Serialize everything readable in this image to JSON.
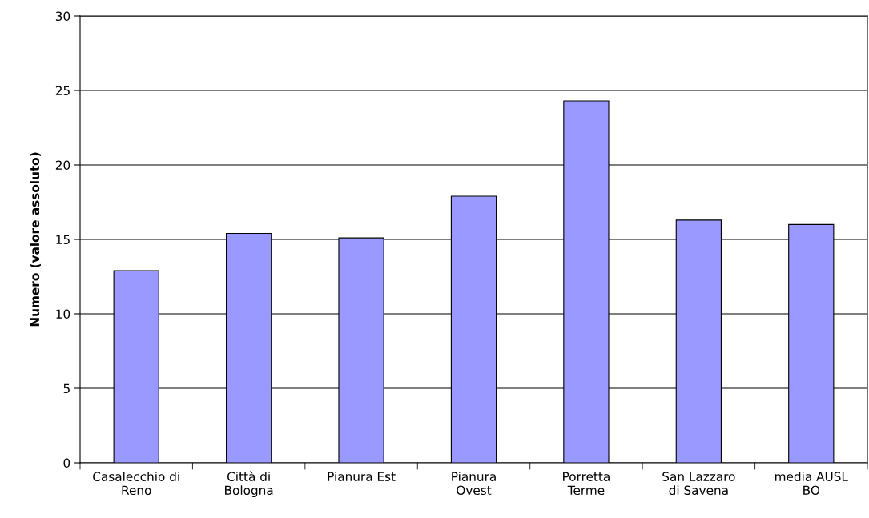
{
  "chart_data": {
    "type": "bar",
    "ylabel": "Numero (valore assoluto)",
    "categories": [
      "Casalecchio di\nReno",
      "Città di\nBologna",
      "Pianura Est",
      "Pianura\nOvest",
      "Porretta\nTerme",
      "San Lazzaro\ndi Savena",
      "media AUSL\nBO"
    ],
    "values": [
      12.9,
      15.4,
      15.1,
      17.9,
      24.3,
      16.3,
      16.0
    ],
    "color": "#9999ff",
    "ylim": [
      0,
      30
    ],
    "yticks": [
      0,
      5,
      10,
      15,
      20,
      25,
      30
    ],
    "grid": "y"
  }
}
